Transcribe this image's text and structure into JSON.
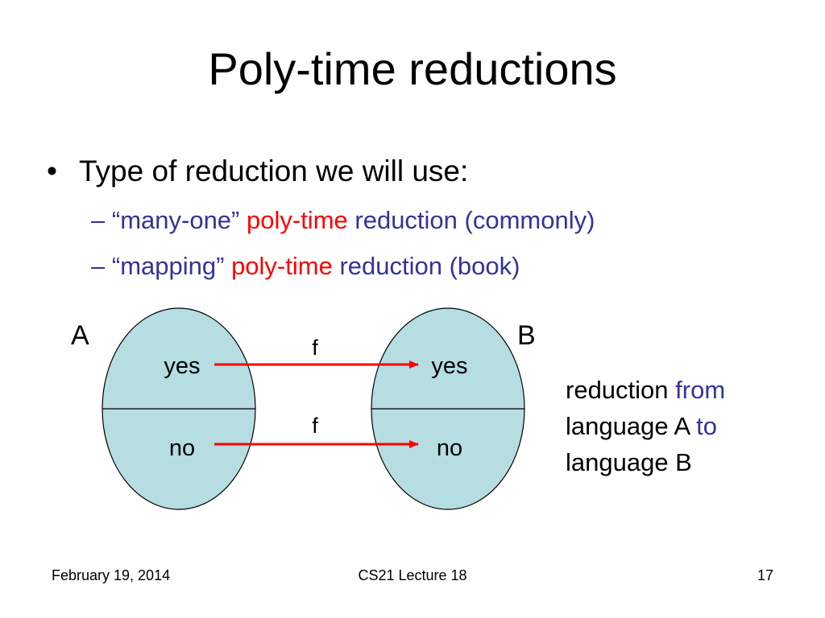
{
  "slide": {
    "title": "Poly-time reductions",
    "bullet": {
      "marker": "•",
      "text": "Type of reduction we will use:"
    },
    "sub_bullets": [
      {
        "dash": "–",
        "quoted": "“many-one”",
        "highlight": "poly-time",
        "rest": "reduction (commonly)"
      },
      {
        "dash": "–",
        "quoted": "“mapping”",
        "highlight": "poly-time",
        "rest": "reduction (book)"
      }
    ]
  },
  "diagram": {
    "left_set": {
      "label": "A",
      "top_region": "yes",
      "bottom_region": "no"
    },
    "right_set": {
      "label": "B",
      "top_region": "yes",
      "bottom_region": "no"
    },
    "arrows": [
      {
        "label": "f"
      },
      {
        "label": "f"
      }
    ],
    "colors": {
      "set_fill": "#b6dde1",
      "arrow": "#ff0000",
      "accent_text": "#333399",
      "emphasis_text": "#ff0000"
    }
  },
  "note": {
    "line1_pre": "reduction",
    "line1_accent": "from",
    "line2_pre": "language A",
    "line2_accent": "to",
    "line3": "language B"
  },
  "footer": {
    "date": "February 19, 2014",
    "course": "CS21 Lecture 18",
    "page": "17"
  }
}
